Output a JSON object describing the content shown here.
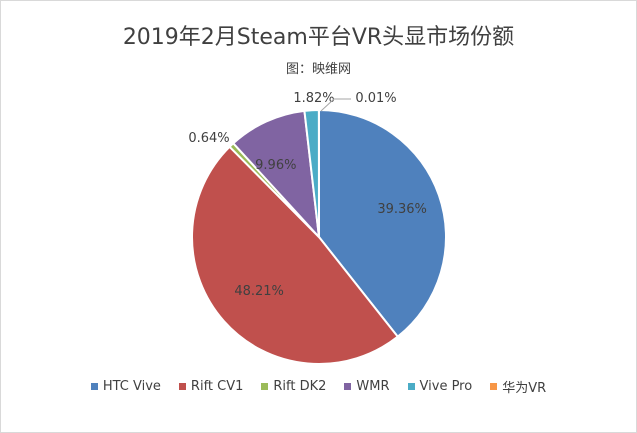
{
  "chart_data": {
    "type": "pie",
    "title": "2019年2月Steam平台VR头显市场份额",
    "subtitle": "图：映维网",
    "slices": [
      {
        "name": "HTC Vive",
        "value": 39.36,
        "label": "39.36%",
        "color": "#4f81bd"
      },
      {
        "name": "Rift CV1",
        "value": 48.21,
        "label": "48.21%",
        "color": "#c0504d"
      },
      {
        "name": "Rift DK2",
        "value": 0.64,
        "label": "0.64%",
        "color": "#9bbb59"
      },
      {
        "name": "WMR",
        "value": 9.96,
        "label": "9.96%",
        "color": "#8064a2"
      },
      {
        "name": "Vive Pro",
        "value": 1.82,
        "label": "1.82%",
        "color": "#4bacc6"
      },
      {
        "name": "华为VR",
        "value": 0.01,
        "label": "0.01%",
        "color": "#f79646"
      }
    ],
    "legend": "bottom"
  }
}
